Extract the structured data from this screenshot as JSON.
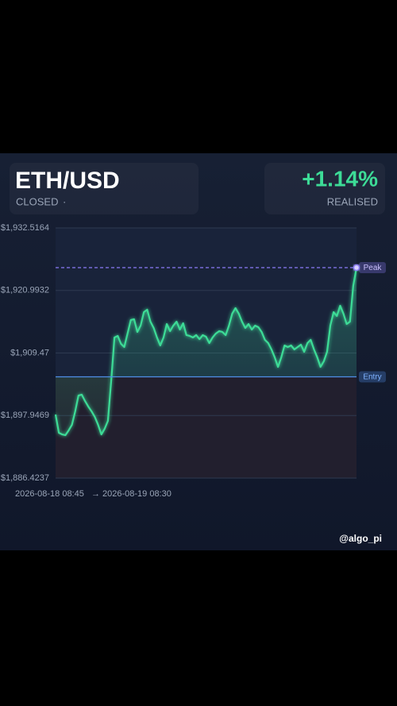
{
  "header": {
    "symbol": "ETH/USD",
    "status": "CLOSED",
    "status_separator": "·",
    "change": "+1.14%",
    "change_status": "REALISED"
  },
  "watermark": "@algo_pi",
  "chart_data": {
    "type": "line",
    "color": "#3ddc97",
    "grid": true,
    "ylim": [
      1886.4237,
      1932.5164
    ],
    "yticks": [
      {
        "value": 1932.5164,
        "label": "$1,932.5164"
      },
      {
        "value": 1920.9932,
        "label": "$1,920.9932"
      },
      {
        "value": 1909.47,
        "label": "$1,909.47"
      },
      {
        "value": 1897.9469,
        "label": "$1,897.9469"
      },
      {
        "value": 1886.4237,
        "label": "$1,886.4237"
      }
    ],
    "x_start": "2026-08-18 08:45",
    "x_separator": "→",
    "x_end": "2026-08-19 08:30",
    "reference_lines": [
      {
        "name": "Peak",
        "value": 1925.2,
        "color": "#8b7cf6"
      },
      {
        "name": "Entry",
        "value": 1905.08,
        "color": "#4f8fe8"
      }
    ],
    "values": [
      1898.13,
      1894.77,
      1894.47,
      1894.33,
      1895.21,
      1896.23,
      1898.72,
      1901.64,
      1901.79,
      1900.62,
      1899.6,
      1898.72,
      1897.69,
      1896.23,
      1894.47,
      1895.5,
      1896.96,
      1904.28,
      1912.33,
      1912.62,
      1911.16,
      1910.57,
      1913.06,
      1915.55,
      1915.69,
      1913.35,
      1914.52,
      1917.01,
      1917.45,
      1915.25,
      1914.08,
      1912.33,
      1910.86,
      1912.33,
      1914.81,
      1913.5,
      1914.52,
      1915.25,
      1913.79,
      1914.96,
      1912.77,
      1912.62,
      1912.33,
      1912.77,
      1912.03,
      1912.77,
      1912.47,
      1911.3,
      1912.33,
      1913.06,
      1913.5,
      1913.35,
      1912.77,
      1914.52,
      1916.72,
      1917.74,
      1916.72,
      1915.25,
      1914.08,
      1914.81,
      1913.79,
      1914.52,
      1914.23,
      1913.35,
      1911.89,
      1911.3,
      1910.13,
      1908.67,
      1906.91,
      1908.67,
      1910.86,
      1910.57,
      1910.86,
      1910.13,
      1910.57,
      1911.01,
      1909.69,
      1911.3,
      1911.89,
      1910.13,
      1908.67,
      1906.91,
      1907.94,
      1909.69,
      1914.52,
      1917.01,
      1916.28,
      1918.18,
      1916.72,
      1914.81,
      1915.25,
      1921.84,
      1925.2
    ]
  }
}
